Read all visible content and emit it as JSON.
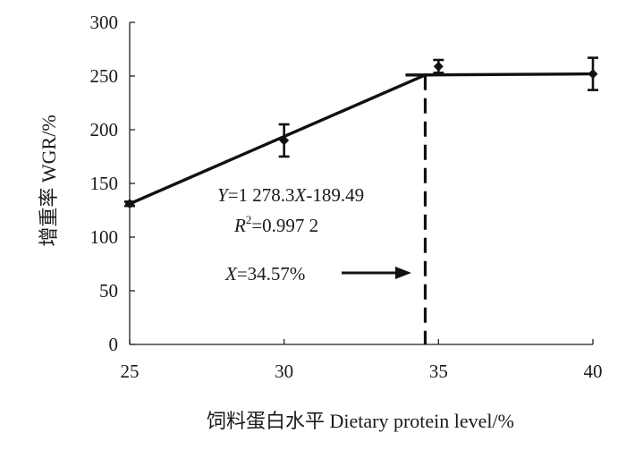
{
  "chart_data": {
    "type": "line",
    "title": "",
    "xlabel": "饲料蛋白水平 Dietary protein level/%",
    "ylabel": "增重率 WGR/%",
    "xlim": [
      25,
      40
    ],
    "ylim": [
      0,
      300
    ],
    "x_ticks": [
      "25",
      "30",
      "35",
      "40"
    ],
    "y_ticks": [
      "0",
      "50",
      "100",
      "150",
      "200",
      "250",
      "300"
    ],
    "grid": false,
    "series": [
      {
        "points": [
          {
            "x": 25,
            "y": 131,
            "err": 2
          },
          {
            "x": 30,
            "y": 190,
            "err": 15
          },
          {
            "x": 35,
            "y": 259,
            "err": 6
          },
          {
            "x": 40,
            "y": 252,
            "err": 15
          }
        ]
      }
    ],
    "broken_line": {
      "fit_points": [
        {
          "x": 25,
          "y": 131
        },
        {
          "x": 34.57,
          "y": 251
        },
        {
          "x": 40,
          "y": 252
        }
      ],
      "breakpoint_x": 34.57
    },
    "annotations": {
      "equation_y": "Y",
      "equation_mid": "=1 278.3",
      "equation_x": "X",
      "equation_tail": "-189.49",
      "r2_r": "R",
      "r2_sup": "2",
      "r2_value": "=0.997 2",
      "breakpoint_x": "X",
      "breakpoint_value": "=34.57%"
    }
  }
}
